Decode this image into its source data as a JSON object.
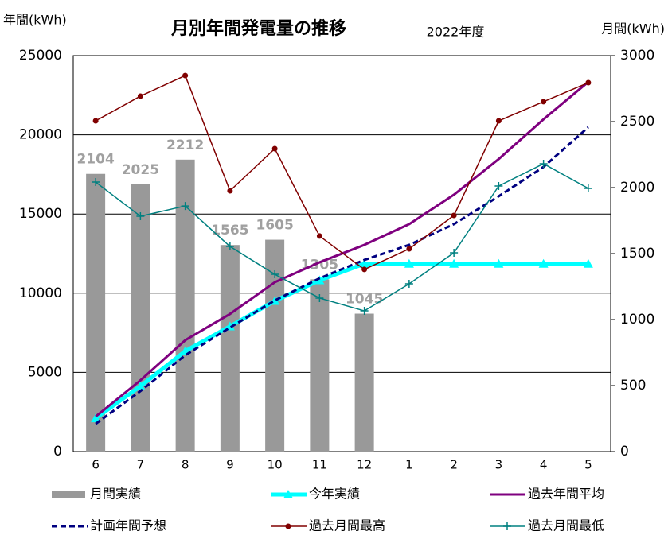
{
  "chart_data": {
    "type": "combo",
    "title": "月別年間発電量の推移",
    "subtitle": "2022年度",
    "y_label": "年間(kWh)",
    "y2_label": "月間(kWh)",
    "categories": [
      "6",
      "7",
      "8",
      "9",
      "10",
      "11",
      "12",
      "1",
      "2",
      "3",
      "4",
      "5"
    ],
    "ylim": [
      0,
      25000
    ],
    "yticks": [
      0,
      5000,
      10000,
      15000,
      20000,
      25000
    ],
    "y2lim": [
      0,
      3000
    ],
    "y2ticks": [
      0,
      500,
      1000,
      1500,
      2000,
      2500,
      3000
    ],
    "grid": true,
    "legend": "bottom",
    "series": [
      {
        "name": "月間実績",
        "type": "bar",
        "axis": "y2",
        "color": "#999999",
        "values": [
          2104,
          2025,
          2212,
          1565,
          1605,
          1305,
          1045,
          null,
          null,
          null,
          null,
          null
        ]
      },
      {
        "name": "今年実績",
        "type": "line",
        "color": "#00ffff",
        "width": 5,
        "marker": "triangle",
        "values": [
          2104,
          4129,
          6341,
          7906,
          9511,
          10816,
          11861,
          11861,
          11861,
          11861,
          11861,
          11861
        ]
      },
      {
        "name": "過去年間平均",
        "type": "line",
        "color": "#7f007f",
        "width": 3,
        "marker": "none",
        "values": [
          2210,
          4500,
          7030,
          8690,
          10690,
          11950,
          13050,
          14360,
          16220,
          18470,
          20980,
          23340
        ]
      },
      {
        "name": "計画年間予想",
        "type": "line",
        "color": "#000080",
        "width": 3,
        "dashed": true,
        "marker": "none",
        "values": [
          1750,
          3820,
          6080,
          7830,
          9540,
          10940,
          12100,
          13050,
          14360,
          16120,
          17970,
          20480
        ]
      },
      {
        "name": "過去月間最高",
        "type": "line",
        "axis": "y2",
        "color": "#800000",
        "width": 1.5,
        "marker": "circle",
        "values": [
          2506,
          2693,
          2849,
          1976,
          2295,
          1633,
          1380,
          1536,
          1789,
          2506,
          2651,
          2795
        ]
      },
      {
        "name": "過去月間最低",
        "type": "line",
        "axis": "y2",
        "color": "#008080",
        "width": 1.5,
        "marker": "plus",
        "values": [
          2042,
          1783,
          1861,
          1554,
          1343,
          1163,
          1066,
          1271,
          1506,
          2012,
          2181,
          1994
        ]
      }
    ]
  }
}
